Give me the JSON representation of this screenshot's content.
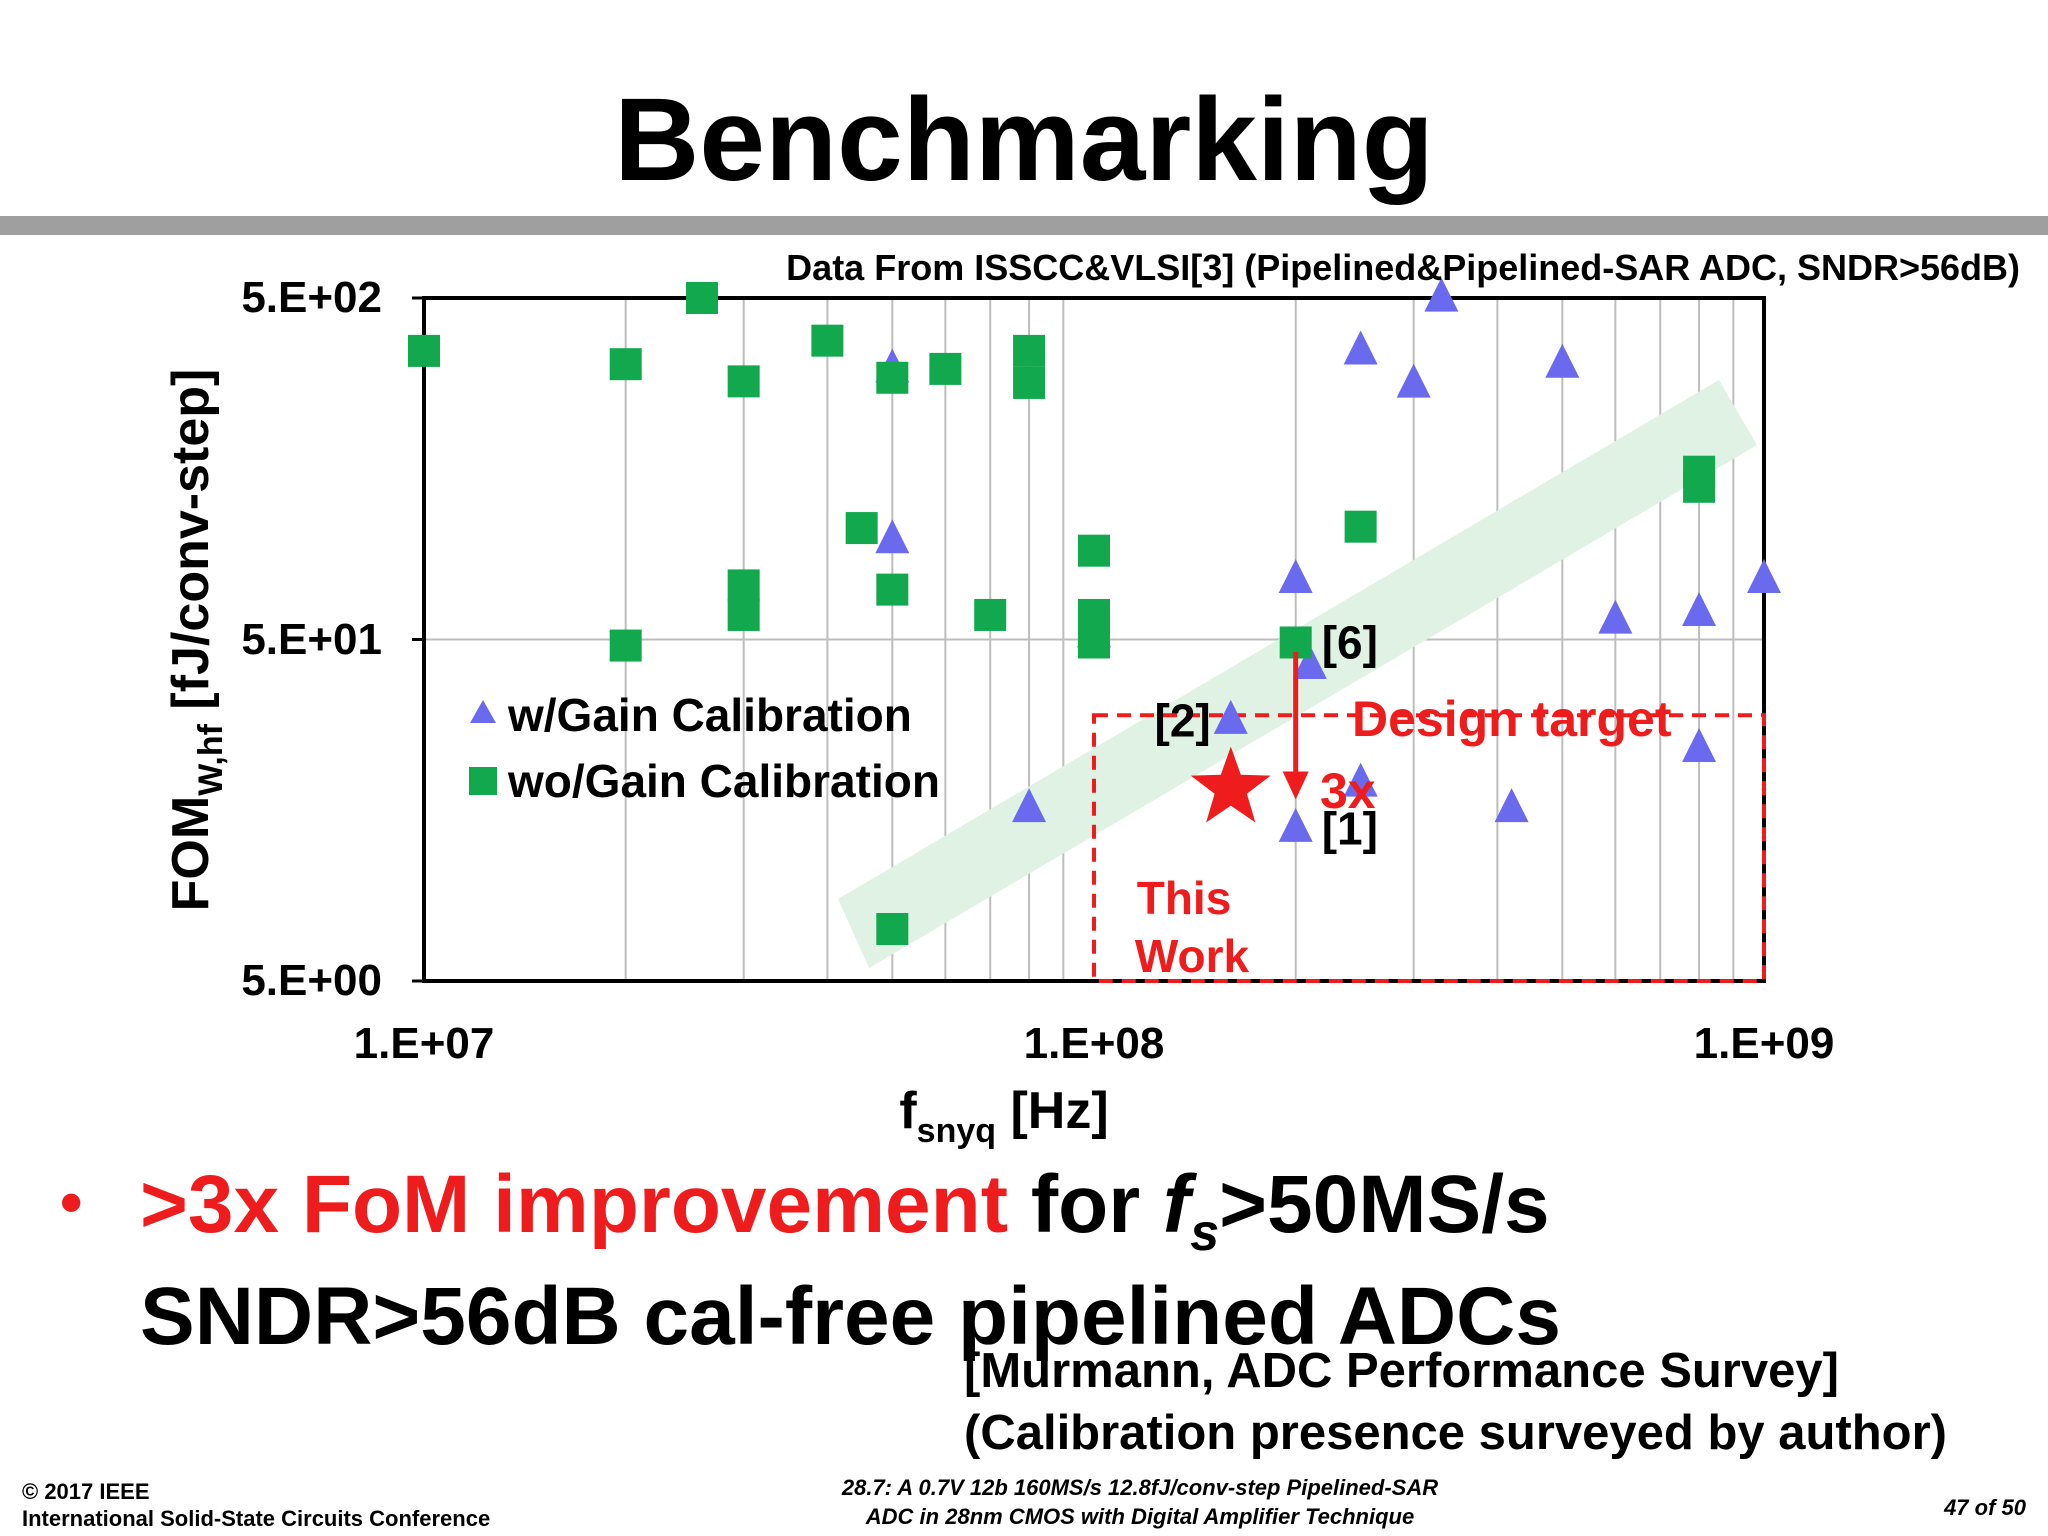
{
  "slide": {
    "title": "Benchmarking",
    "bullet": {
      "highlight": ">3x FoM improvement",
      "text_for": " for ",
      "fs_main": "f",
      "fs_sub": "s",
      "text_after": ">50MS/s",
      "line2": "SNDR>56dB cal-free pipelined ADCs"
    },
    "source": {
      "line1": "[Murmann, ADC Performance Survey]",
      "line2": "(Calibration presence surveyed by author)"
    },
    "footer": {
      "copyright": "© 2017 IEEE",
      "conference": "International Solid-State Circuits Conference",
      "paper_line1": "28.7: A 0.7V 12b 160MS/s 12.8fJ/conv-step Pipelined-SAR",
      "paper_line2": "ADC in 28nm CMOS with Digital Amplifier Technique",
      "page": "47 of 50"
    }
  },
  "chart_data": {
    "type": "scatter",
    "subtitle": "Data From ISSCC&VLSI[3] (Pipelined&Pipelined-SAR ADC, SNDR>56dB)",
    "xlabel_main": "f",
    "xlabel_sub": "snyq",
    "xlabel_unit": " [Hz]",
    "ylabel_main": "FOM",
    "ylabel_sub": "W,hf",
    "ylabel_unit": " [fJ/conv-step]",
    "x_scale": "log",
    "y_scale": "log",
    "xlim": [
      10000000,
      1000000000
    ],
    "ylim": [
      5,
      500
    ],
    "x_ticks": [
      {
        "value": 10000000,
        "label": "1.E+07"
      },
      {
        "value": 100000000,
        "label": "1.E+08"
      },
      {
        "value": 1000000000,
        "label": "1.E+09"
      }
    ],
    "y_ticks": [
      {
        "value": 5,
        "label": "5.E+00"
      },
      {
        "value": 50,
        "label": "5.E+01"
      },
      {
        "value": 500,
        "label": "5.E+02"
      }
    ],
    "grid": {
      "x_minor": true,
      "y_major": true
    },
    "legend_position": "middle-left",
    "series": [
      {
        "name": "w/Gain Calibration",
        "marker": "triangle",
        "color": "#6a6aee",
        "points": [
          [
            50000000,
            310
          ],
          [
            50000000,
            98
          ],
          [
            100000000,
            52
          ],
          [
            200000000,
            75
          ],
          [
            210000000,
            42
          ],
          [
            160000000,
            29
          ],
          [
            80000000,
            16
          ],
          [
            200000000,
            14
          ],
          [
            250000000,
            19
          ],
          [
            250000000,
            350
          ],
          [
            300000000,
            280
          ],
          [
            330000000,
            500
          ],
          [
            500000000,
            320
          ],
          [
            600000000,
            57
          ],
          [
            800000000,
            60
          ],
          [
            800000000,
            24
          ],
          [
            1000000000,
            75
          ],
          [
            420000000,
            16
          ]
        ]
      },
      {
        "name": "wo/Gain Calibration",
        "marker": "square",
        "color": "#12a84e",
        "points": [
          [
            10000000,
            350
          ],
          [
            20000000,
            320
          ],
          [
            26000000,
            500
          ],
          [
            30000000,
            285
          ],
          [
            30000000,
            72
          ],
          [
            30000000,
            59
          ],
          [
            20000000,
            48
          ],
          [
            40000000,
            375
          ],
          [
            45000000,
            106
          ],
          [
            50000000,
            292
          ],
          [
            50000000,
            70
          ],
          [
            60000000,
            310
          ],
          [
            70000000,
            59
          ],
          [
            80000000,
            350
          ],
          [
            80000000,
            282
          ],
          [
            100000000,
            91
          ],
          [
            100000000,
            59
          ],
          [
            100000000,
            49
          ],
          [
            250000000,
            107
          ],
          [
            800000000,
            155
          ],
          [
            800000000,
            140
          ],
          [
            50000000,
            7.1
          ],
          [
            200000000,
            49
          ]
        ]
      }
    ],
    "this_work": {
      "label_line1": "This",
      "label_line2": "Work",
      "x": 160000000,
      "y": 18.3,
      "color": "#ee1c1c"
    },
    "point_labels": [
      {
        "text": "[6]",
        "x": 200000000,
        "y": 49
      },
      {
        "text": "[2]",
        "x": 160000000,
        "y": 29
      },
      {
        "text": "[1]",
        "x": 200000000,
        "y": 14
      }
    ],
    "annotations": {
      "design_target": "Design target",
      "improvement": "3x",
      "target_box": {
        "x_from": 100000000,
        "x_to": 1000000000,
        "y_from": 5,
        "y_to": 30
      },
      "arrow": {
        "x": 200000000,
        "y_from": 46,
        "y_to": 17
      },
      "trend_band_color": "#dff2e4"
    }
  }
}
